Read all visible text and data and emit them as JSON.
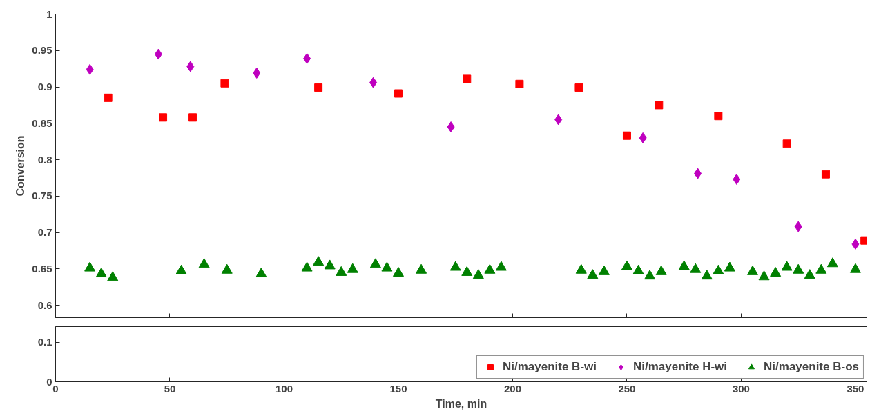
{
  "chart_data": [
    {
      "type": "scatter",
      "ylabel": "Conversion",
      "xlim": [
        0,
        355
      ],
      "xticks": [
        0,
        50,
        100,
        150,
        200,
        250,
        300,
        350
      ],
      "ylim": [
        0.583,
        1
      ],
      "yticks": [
        0.6,
        0.65,
        0.7,
        0.75,
        0.8,
        0.85,
        0.9,
        0.95,
        1
      ],
      "tick_labels": "y",
      "legend": "bottom right",
      "grid": false,
      "series": [
        {
          "name": "Ni/mayenite B-wi",
          "color": "#ff0000",
          "marker": "square",
          "x": [
            23,
            47,
            60,
            74,
            115,
            150,
            180,
            203,
            229,
            250,
            264,
            290,
            320,
            337,
            354
          ],
          "values": [
            0.885,
            0.858,
            0.858,
            0.905,
            0.899,
            0.891,
            0.911,
            0.904,
            0.899,
            0.833,
            0.875,
            0.86,
            0.822,
            0.78,
            0.689
          ]
        },
        {
          "name": "Ni/mayenite H-wi",
          "color": "#bf00bf",
          "marker": "diamond",
          "x": [
            15,
            45,
            59,
            88,
            110,
            139,
            173,
            220,
            257,
            281,
            298,
            325,
            350
          ],
          "values": [
            0.924,
            0.945,
            0.928,
            0.919,
            0.939,
            0.906,
            0.845,
            0.855,
            0.83,
            0.781,
            0.773,
            0.708,
            0.684
          ]
        },
        {
          "name": "Ni/mayenite B-os",
          "color": "#008000",
          "marker": "triangle",
          "x": [
            15,
            20,
            25,
            55,
            65,
            75,
            90,
            110,
            115,
            120,
            125,
            130,
            140,
            145,
            150,
            160,
            175,
            180,
            185,
            190,
            195,
            230,
            235,
            240,
            250,
            255,
            260,
            265,
            275,
            280,
            285,
            290,
            295,
            305,
            310,
            315,
            320,
            325,
            330,
            335,
            340,
            350
          ],
          "values": [
            0.651,
            0.643,
            0.638,
            0.647,
            0.656,
            0.648,
            0.643,
            0.651,
            0.659,
            0.654,
            0.645,
            0.649,
            0.656,
            0.651,
            0.644,
            0.648,
            0.652,
            0.645,
            0.641,
            0.648,
            0.652,
            0.648,
            0.641,
            0.646,
            0.653,
            0.647,
            0.64,
            0.646,
            0.653,
            0.649,
            0.64,
            0.647,
            0.651,
            0.646,
            0.639,
            0.644,
            0.652,
            0.648,
            0.641,
            0.648,
            0.657,
            0.649
          ]
        }
      ]
    },
    {
      "type": "scatter",
      "xlabel": "Time, min",
      "xlim": [
        0,
        355
      ],
      "xticks": [
        0,
        50,
        100,
        150,
        200,
        250,
        300,
        350
      ],
      "ylim": [
        0,
        0.14
      ],
      "yticks": [
        0,
        0.1
      ],
      "grid": false
    }
  ]
}
